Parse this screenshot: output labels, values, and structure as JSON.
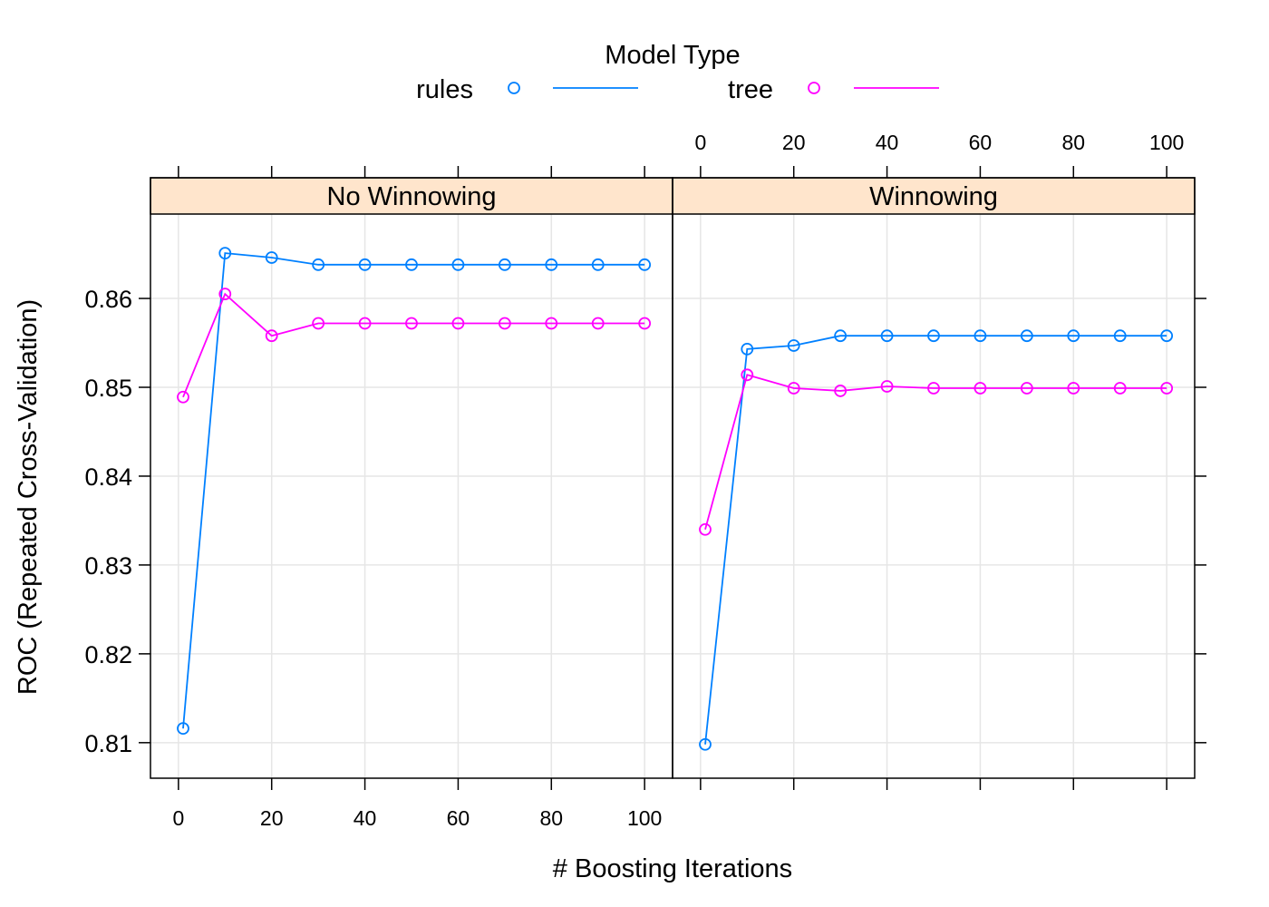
{
  "legend": {
    "title": "Model Type",
    "entries": [
      {
        "label": "rules",
        "color": "#0080ff"
      },
      {
        "label": "tree",
        "color": "#ff00ff"
      }
    ]
  },
  "xlabel": "# Boosting Iterations",
  "ylabel": "ROC (Repeated Cross-Validation)",
  "chart_data": {
    "type": "line",
    "x_ticks": [
      0,
      20,
      40,
      60,
      80,
      100
    ],
    "y_ticks": [
      0.81,
      0.82,
      0.83,
      0.84,
      0.85,
      0.86
    ],
    "xlim": [
      -6,
      106
    ],
    "ylim": [
      0.806,
      0.8695
    ],
    "grid": true,
    "legend_position": "top",
    "panels": [
      {
        "title": "No Winnowing",
        "x": [
          1,
          10,
          20,
          30,
          40,
          50,
          60,
          70,
          80,
          90,
          100
        ],
        "series": [
          {
            "name": "rules",
            "color": "#0080ff",
            "values": [
              0.8116,
              0.8651,
              0.8646,
              0.8638,
              0.8638,
              0.8638,
              0.8638,
              0.8638,
              0.8638,
              0.8638,
              0.8638
            ]
          },
          {
            "name": "tree",
            "color": "#ff00ff",
            "values": [
              0.8489,
              0.8605,
              0.8558,
              0.8572,
              0.8572,
              0.8572,
              0.8572,
              0.8572,
              0.8572,
              0.8572,
              0.8572
            ]
          }
        ]
      },
      {
        "title": "Winnowing",
        "x": [
          1,
          10,
          20,
          30,
          40,
          50,
          60,
          70,
          80,
          90,
          100
        ],
        "series": [
          {
            "name": "rules",
            "color": "#0080ff",
            "values": [
              0.8098,
              0.8543,
              0.8547,
              0.8558,
              0.8558,
              0.8558,
              0.8558,
              0.8558,
              0.8558,
              0.8558,
              0.8558
            ]
          },
          {
            "name": "tree",
            "color": "#ff00ff",
            "values": [
              0.834,
              0.8514,
              0.8499,
              0.8496,
              0.8501,
              0.8499,
              0.8499,
              0.8499,
              0.8499,
              0.8499,
              0.8499
            ]
          }
        ]
      }
    ]
  }
}
